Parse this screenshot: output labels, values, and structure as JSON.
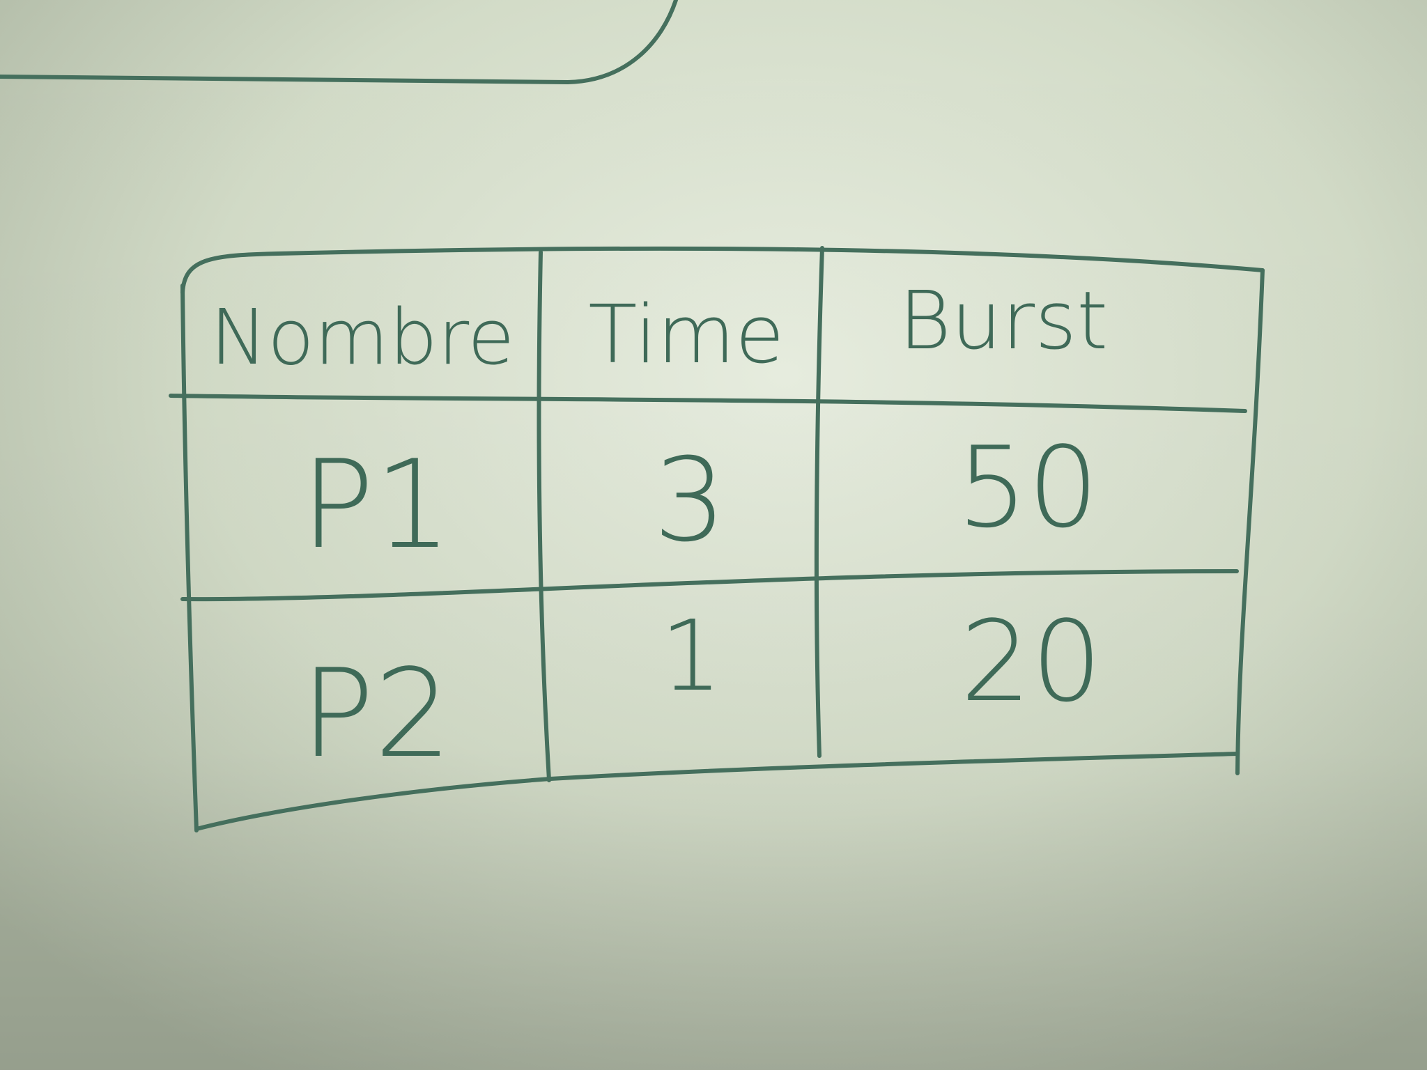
{
  "colors": {
    "board": "#d4dcc9",
    "board_light": "#e6ecdc",
    "board_dark": "#b2bca8",
    "ink": "#456f5d"
  },
  "table": {
    "headers": [
      "Nombre",
      "Time",
      "Burst"
    ],
    "rows": [
      [
        "P1",
        "3",
        "50"
      ],
      [
        "P2",
        "1",
        "20"
      ]
    ]
  }
}
